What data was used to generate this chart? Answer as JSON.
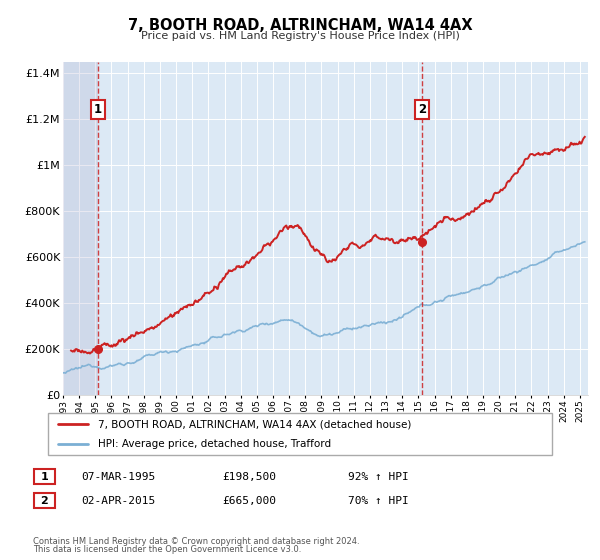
{
  "title": "7, BOOTH ROAD, ALTRINCHAM, WA14 4AX",
  "subtitle": "Price paid vs. HM Land Registry's House Price Index (HPI)",
  "legend_line1": "7, BOOTH ROAD, ALTRINCHAM, WA14 4AX (detached house)",
  "legend_line2": "HPI: Average price, detached house, Trafford",
  "footnote1": "Contains HM Land Registry data © Crown copyright and database right 2024.",
  "footnote2": "This data is licensed under the Open Government Licence v3.0.",
  "transaction1_date": "07-MAR-1995",
  "transaction1_price": "£198,500",
  "transaction1_hpi": "92% ↑ HPI",
  "transaction2_date": "02-APR-2015",
  "transaction2_price": "£665,000",
  "transaction2_hpi": "70% ↑ HPI",
  "sale1_x": 1995.17,
  "sale1_y": 198500,
  "sale2_x": 2015.25,
  "sale2_y": 665000,
  "vline1_x": 1995.17,
  "vline2_x": 2015.25,
  "hpi_color": "#7bafd4",
  "property_color": "#cc2222",
  "vline_color": "#cc2222",
  "plot_bg_color": "#dce9f5",
  "ylim_max": 1450000,
  "xlim_min": 1993.0,
  "xlim_max": 2025.5,
  "yticks": [
    0,
    200000,
    400000,
    600000,
    800000,
    1000000,
    1200000,
    1400000
  ],
  "ytick_labels": [
    "£0",
    "£200K",
    "£400K",
    "£600K",
    "£800K",
    "£1M",
    "£1.2M",
    "£1.4M"
  ],
  "xticks": [
    1993,
    1994,
    1995,
    1996,
    1997,
    1998,
    1999,
    2000,
    2001,
    2002,
    2003,
    2004,
    2005,
    2006,
    2007,
    2008,
    2009,
    2010,
    2011,
    2012,
    2013,
    2014,
    2015,
    2016,
    2017,
    2018,
    2019,
    2020,
    2021,
    2022,
    2023,
    2024,
    2025
  ]
}
